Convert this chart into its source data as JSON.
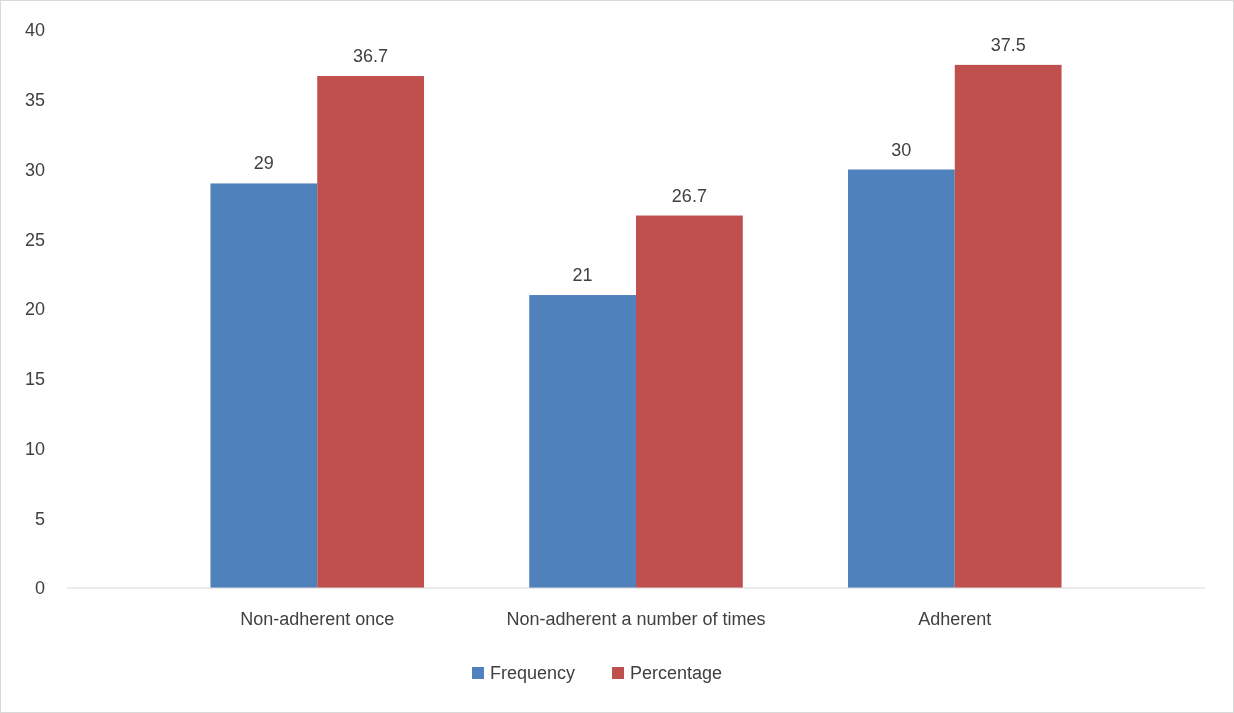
{
  "chart_data": {
    "type": "bar",
    "categories": [
      "Non-adherent once",
      "Non-adherent a number of times",
      "Adherent"
    ],
    "series": [
      {
        "name": "Frequency",
        "color": "#4f81bd",
        "values": [
          29,
          21,
          30
        ]
      },
      {
        "name": "Percentage",
        "color": "#c0504d",
        "values": [
          36.7,
          26.7,
          37.5
        ]
      }
    ],
    "ylim": [
      0,
      40
    ],
    "yticks": [
      0,
      5,
      10,
      15,
      20,
      25,
      30,
      35,
      40
    ],
    "grid": false,
    "legend": "bottom",
    "data_labels": true
  }
}
